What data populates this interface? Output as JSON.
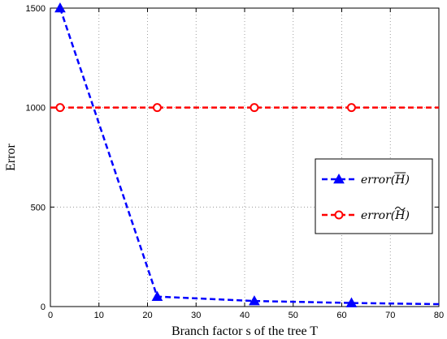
{
  "chart_data": {
    "type": "line",
    "title": "",
    "xlabel": "Branch factor s of the tree T",
    "ylabel": "Error",
    "xlim": [
      0,
      80
    ],
    "ylim": [
      0,
      1500
    ],
    "xticks": [
      0,
      10,
      20,
      30,
      40,
      50,
      60,
      70,
      80
    ],
    "yticks": [
      0,
      500,
      1000,
      1500
    ],
    "grid": true,
    "legend_position": "right",
    "series": [
      {
        "name": "error(H̄)",
        "color": "#0000ff",
        "line_style": "dashed",
        "marker": "triangle",
        "x": [
          2,
          22,
          42,
          62,
          80
        ],
        "y": [
          1500,
          50,
          28,
          18,
          12
        ],
        "marker_x": [
          2,
          22,
          42,
          62
        ]
      },
      {
        "name": "error(H̃)",
        "color": "#ff0000",
        "line_style": "dashed",
        "marker": "circle",
        "x": [
          0,
          2,
          22,
          42,
          62,
          80
        ],
        "y": [
          1000,
          1000,
          1000,
          1000,
          1000,
          1000
        ],
        "marker_x": [
          2,
          22,
          42,
          62
        ]
      }
    ],
    "legend": [
      {
        "prefix": "error(",
        "symbol": "H",
        "accent": "bar",
        "suffix": ")"
      },
      {
        "prefix": "error(",
        "symbol": "H",
        "accent": "tilde",
        "suffix": ")"
      }
    ]
  }
}
